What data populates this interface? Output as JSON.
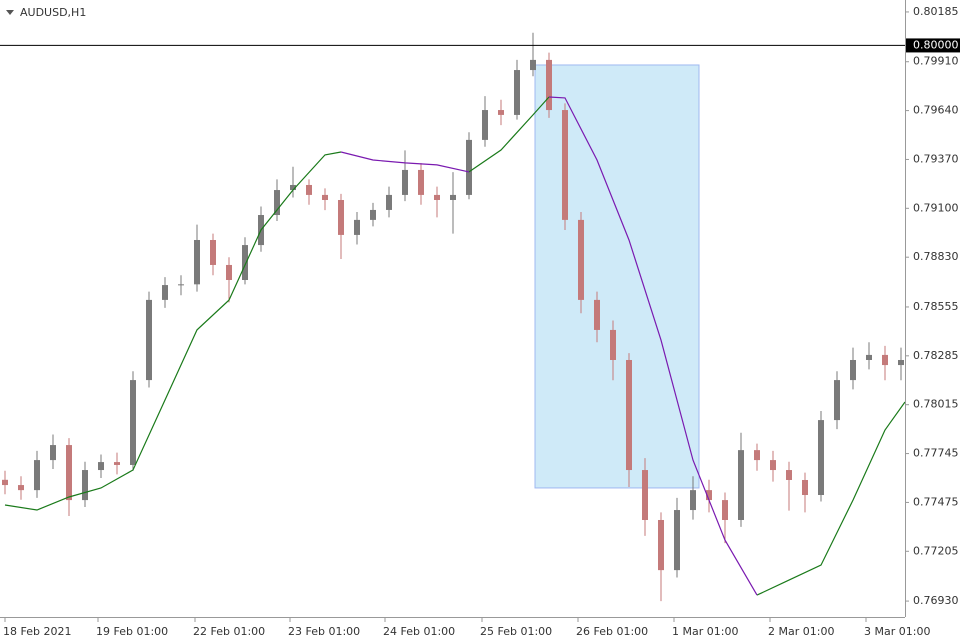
{
  "chart_data": {
    "type": "candlestick",
    "title": "AUDUSD,H1",
    "x": [
      0,
      4,
      8,
      12,
      16,
      20,
      24,
      28,
      32,
      36,
      40,
      44,
      48,
      52,
      56,
      60,
      64,
      68,
      72,
      76,
      80,
      84,
      88,
      92,
      96,
      100,
      104,
      108,
      112,
      116,
      120,
      124,
      128,
      132,
      136,
      140,
      144,
      148,
      152,
      156,
      160,
      164,
      168,
      172,
      176,
      180,
      184,
      188,
      192,
      196,
      200,
      204,
      208,
      212,
      216,
      220,
      224
    ],
    "open": [
      0.776,
      0.77571,
      0.77543,
      0.77709,
      0.77792,
      0.77488,
      0.77654,
      0.77698,
      0.77682,
      0.78151,
      0.78594,
      0.78676,
      0.7868,
      0.78925,
      0.78787,
      0.78704,
      0.78897,
      0.79063,
      0.79201,
      0.79229,
      0.79174,
      0.79146,
      0.78953,
      0.79036,
      0.79091,
      0.79174,
      0.79312,
      0.79174,
      0.79146,
      0.79174,
      0.79478,
      0.79643,
      0.79616,
      0.79864,
      0.7992,
      0.79643,
      0.79036,
      0.78594,
      0.78428,
      0.78262,
      0.77654,
      0.77378,
      0.77101,
      0.77433,
      0.77543,
      0.77488,
      0.77378,
      0.77764,
      0.77709,
      0.77654,
      0.77599,
      0.77516,
      0.7793,
      0.78151,
      0.78262,
      0.7829,
      0.78234
    ],
    "high": [
      0.7765,
      0.7762,
      0.7776,
      0.7785,
      0.7783,
      0.777,
      0.7774,
      0.7775,
      0.782,
      0.7864,
      0.7872,
      0.7873,
      0.7901,
      0.7896,
      0.7883,
      0.7894,
      0.7911,
      0.7926,
      0.7933,
      0.7926,
      0.7921,
      0.7918,
      0.7908,
      0.7913,
      0.7922,
      0.7942,
      0.7935,
      0.7922,
      0.793,
      0.7952,
      0.7972,
      0.797,
      0.7992,
      0.8007,
      0.7996,
      0.7968,
      0.7908,
      0.7864,
      0.7848,
      0.783,
      0.7772,
      0.7742,
      0.775,
      0.7762,
      0.776,
      0.7753,
      0.7786,
      0.778,
      0.7776,
      0.777,
      0.7764,
      0.7798,
      0.782,
      0.7833,
      0.7836,
      0.7834,
      0.7833
    ],
    "low": [
      0.7752,
      0.7749,
      0.775,
      0.7766,
      0.774,
      0.7745,
      0.7761,
      0.7763,
      0.7765,
      0.7811,
      0.7855,
      0.7862,
      0.7864,
      0.7873,
      0.7858,
      0.7868,
      0.7886,
      0.7903,
      0.7916,
      0.7912,
      0.7909,
      0.7882,
      0.789,
      0.79,
      0.7905,
      0.7914,
      0.7912,
      0.7905,
      0.7896,
      0.7915,
      0.7944,
      0.7956,
      0.7959,
      0.7983,
      0.796,
      0.7898,
      0.7852,
      0.7836,
      0.7815,
      0.7756,
      0.7729,
      0.7693,
      0.7706,
      0.7738,
      0.7742,
      0.7725,
      0.7734,
      0.7765,
      0.7759,
      0.7743,
      0.7742,
      0.7748,
      0.7788,
      0.781,
      0.7821,
      0.7815,
      0.7815
    ],
    "close": [
      0.77571,
      0.77543,
      0.77709,
      0.77792,
      0.77488,
      0.77654,
      0.77698,
      0.77682,
      0.78151,
      0.78594,
      0.78676,
      0.7868,
      0.78925,
      0.78787,
      0.78704,
      0.78897,
      0.79063,
      0.79201,
      0.79229,
      0.79174,
      0.79146,
      0.78953,
      0.79036,
      0.79091,
      0.79174,
      0.79312,
      0.79174,
      0.79146,
      0.79174,
      0.79478,
      0.79643,
      0.79616,
      0.79864,
      0.7992,
      0.79643,
      0.79036,
      0.78594,
      0.78428,
      0.78262,
      0.77654,
      0.77378,
      0.77101,
      0.77433,
      0.77543,
      0.77488,
      0.77378,
      0.77764,
      0.77709,
      0.77654,
      0.77599,
      0.77516,
      0.7793,
      0.78151,
      0.78262,
      0.7829,
      0.78234,
      0.78262
    ],
    "up_color": "#7a7a7a",
    "down_color": "#c47a7a",
    "lines": [
      {
        "color": "#1a7a1a",
        "x": [
          0,
          8,
          16,
          24,
          32,
          40,
          48,
          56,
          64,
          72,
          80,
          84,
          92,
          100,
          108,
          116,
          124,
          132,
          136,
          140,
          148,
          156,
          164,
          172,
          180,
          188,
          196,
          204,
          212,
          220,
          225
        ],
        "values": [
          0.77461,
          0.77433,
          0.77505,
          0.77555,
          0.77654,
          0.78041,
          0.78428,
          0.78593,
          0.7898,
          0.79201,
          0.79395,
          0.79411,
          null,
          null,
          null,
          0.79301,
          0.79422,
          0.79616,
          0.79715,
          null,
          null,
          null,
          null,
          null,
          null,
          0.76963,
          0.77046,
          0.77129,
          0.77488,
          0.77875,
          0.7803
        ]
      },
      {
        "color": "#7a1ab0",
        "x": [
          0,
          8,
          16,
          24,
          32,
          40,
          48,
          56,
          64,
          72,
          80,
          84,
          92,
          100,
          108,
          116,
          124,
          132,
          136,
          140,
          148,
          156,
          164,
          172,
          180,
          188,
          196,
          204,
          212,
          220,
          225
        ],
        "values": [
          null,
          null,
          null,
          null,
          null,
          null,
          null,
          null,
          null,
          null,
          null,
          0.79411,
          0.79367,
          0.79351,
          0.7934,
          0.79301,
          null,
          null,
          0.79715,
          0.7971,
          0.79367,
          0.78925,
          0.78372,
          0.77709,
          0.77267,
          0.76963,
          null,
          null,
          null,
          null,
          null
        ]
      }
    ],
    "rectangle": {
      "x": [
        132.5,
        173.5
      ],
      "y": [
        0.77555,
        0.79892
      ],
      "color": "#cfeaf8",
      "stroke": "#9fb8f0"
    },
    "hline": {
      "value": 0.8,
      "label": "0.80000"
    },
    "xlim": [
      -1.25,
      225
    ],
    "ylim": [
      0.76842,
      0.80251
    ],
    "yticks": [
      0.80185,
      {
        "value": 0.7991,
        "label": "0.79910"
      },
      {
        "value": 0.7964,
        "label": "0.79640"
      },
      {
        "value": 0.7937,
        "label": "0.79370"
      },
      {
        "value": 0.791,
        "label": "0.79100"
      },
      {
        "value": 0.7883,
        "label": "0.78830"
      },
      0.78555,
      0.78285,
      0.78015,
      0.77745,
      0.77475,
      0.77205,
      {
        "value": 0.7693,
        "label": "0.76930"
      }
    ],
    "xticks": [
      {
        "value": 0,
        "label": "18 Feb 2021"
      },
      {
        "value": 23.25,
        "label": "19 Feb 01:00"
      },
      {
        "value": 47.5,
        "label": "22 Feb 01:00"
      },
      {
        "value": 71.25,
        "label": "23 Feb 01:00"
      },
      {
        "value": 95,
        "label": "24 Feb 01:00"
      },
      {
        "value": 119.25,
        "label": "25 Feb 01:00"
      },
      {
        "value": 143.25,
        "label": "26 Feb 01:00"
      },
      {
        "value": 167.25,
        "label": "1 Mar 01:00"
      },
      {
        "value": 191.25,
        "label": "2 Mar 01:00"
      },
      {
        "value": 215.25,
        "label": "3 Mar 01:00"
      }
    ]
  }
}
